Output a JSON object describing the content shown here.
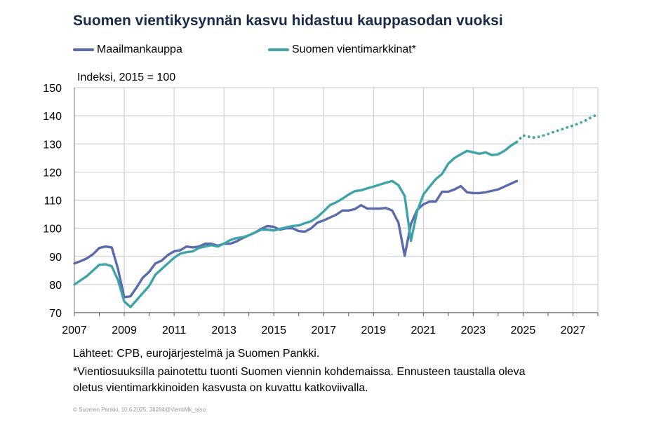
{
  "chart_data": {
    "type": "line",
    "title": "Suomen vientikysynnän kasvu hidastuu kauppasodan vuoksi",
    "ylabel": "Indeksi, 2015 = 100",
    "xlabel": "",
    "xlim": [
      2007,
      2028
    ],
    "ylim": [
      70,
      150
    ],
    "y_ticks": [
      70,
      80,
      90,
      100,
      110,
      120,
      130,
      140,
      150
    ],
    "x_ticks": [
      2007,
      2009,
      2011,
      2013,
      2015,
      2017,
      2019,
      2021,
      2023,
      2025,
      2027
    ],
    "y_tick_labels": [
      "70",
      "80",
      "90",
      "100",
      "110",
      "120",
      "130",
      "140",
      "150"
    ],
    "x_tick_labels": [
      "2007",
      "2009",
      "2011",
      "2013",
      "2015",
      "2017",
      "2019",
      "2021",
      "2023",
      "2025",
      "2027"
    ],
    "grid": true,
    "legend_position": "top",
    "series": [
      {
        "name": "Maailmankauppa",
        "color": "#5b6aad",
        "style": "solid",
        "x": [
          2007.0,
          2007.25,
          2007.5,
          2007.75,
          2008.0,
          2008.25,
          2008.5,
          2008.75,
          2009.0,
          2009.25,
          2009.5,
          2009.75,
          2010.0,
          2010.25,
          2010.5,
          2010.75,
          2011.0,
          2011.25,
          2011.5,
          2011.75,
          2012.0,
          2012.25,
          2012.5,
          2012.75,
          2013.0,
          2013.25,
          2013.5,
          2013.75,
          2014.0,
          2014.25,
          2014.5,
          2014.75,
          2015.0,
          2015.25,
          2015.5,
          2015.75,
          2016.0,
          2016.25,
          2016.5,
          2016.75,
          2017.0,
          2017.25,
          2017.5,
          2017.75,
          2018.0,
          2018.25,
          2018.5,
          2018.75,
          2019.0,
          2019.25,
          2019.5,
          2019.75,
          2020.0,
          2020.25,
          2020.5,
          2020.75,
          2021.0,
          2021.25,
          2021.5,
          2021.75,
          2022.0,
          2022.25,
          2022.5,
          2022.75,
          2023.0,
          2023.25,
          2023.5,
          2023.75,
          2024.0,
          2024.25,
          2024.5,
          2024.75,
          2025.0
        ],
        "values": [
          87.5,
          88.3,
          89.3,
          90.8,
          93.0,
          93.5,
          93.2,
          85.5,
          75.5,
          75.8,
          79.0,
          82.5,
          84.5,
          87.5,
          88.5,
          90.5,
          91.8,
          92.2,
          93.5,
          93.2,
          93.5,
          94.5,
          94.5,
          93.8,
          94.5,
          94.5,
          95.3,
          96.5,
          97.5,
          98.5,
          99.8,
          100.8,
          100.5,
          99.5,
          100.0,
          100.0,
          99.0,
          98.8,
          100.0,
          102.0,
          102.8,
          103.8,
          104.8,
          106.3,
          106.3,
          106.8,
          108.2,
          107.0,
          107.0,
          107.0,
          107.2,
          106.3,
          102.0,
          90.2,
          101.5,
          106.5,
          108.5,
          109.5,
          109.5,
          113.0,
          113.0,
          113.8,
          115.0,
          112.8,
          112.5,
          112.5,
          112.8,
          113.3,
          113.8,
          114.8,
          115.8,
          116.8,
          null
        ]
      },
      {
        "name": "Suomen vientimarkkinat*",
        "color": "#3fa4a9",
        "style": "solid",
        "x": [
          2007.0,
          2007.25,
          2007.5,
          2007.75,
          2008.0,
          2008.25,
          2008.5,
          2008.75,
          2009.0,
          2009.25,
          2009.5,
          2009.75,
          2010.0,
          2010.25,
          2010.5,
          2010.75,
          2011.0,
          2011.25,
          2011.5,
          2011.75,
          2012.0,
          2012.25,
          2012.5,
          2012.75,
          2013.0,
          2013.25,
          2013.5,
          2013.75,
          2014.0,
          2014.25,
          2014.5,
          2014.75,
          2015.0,
          2015.25,
          2015.5,
          2015.75,
          2016.0,
          2016.25,
          2016.5,
          2016.75,
          2017.0,
          2017.25,
          2017.5,
          2017.75,
          2018.0,
          2018.25,
          2018.5,
          2018.75,
          2019.0,
          2019.25,
          2019.5,
          2019.75,
          2020.0,
          2020.25,
          2020.5,
          2020.75,
          2021.0,
          2021.25,
          2021.5,
          2021.75,
          2022.0,
          2022.25,
          2022.5,
          2022.75,
          2023.0,
          2023.25,
          2023.5,
          2023.75,
          2024.0,
          2024.25,
          2024.5,
          2024.75
        ],
        "values": [
          80.0,
          81.5,
          83.0,
          85.0,
          87.0,
          87.2,
          86.5,
          81.5,
          74.0,
          72.0,
          74.5,
          77.0,
          79.5,
          83.5,
          85.5,
          87.5,
          89.5,
          91.0,
          91.5,
          91.8,
          93.0,
          93.5,
          94.0,
          93.5,
          94.5,
          95.8,
          96.5,
          96.8,
          97.5,
          98.5,
          99.5,
          99.5,
          99.2,
          99.8,
          100.3,
          100.8,
          101.0,
          101.8,
          102.5,
          104.0,
          106.0,
          108.2,
          109.2,
          110.5,
          112.0,
          113.2,
          113.5,
          114.2,
          114.8,
          115.5,
          116.2,
          116.8,
          115.3,
          111.5,
          95.5,
          106.0,
          112.0,
          114.8,
          117.5,
          119.3,
          123.0,
          125.0,
          126.3,
          127.5,
          127.0,
          126.5,
          127.0,
          126.0,
          126.3,
          127.5,
          129.3,
          130.7
        ]
      },
      {
        "name": "",
        "color": "#3fa4a9",
        "style": "dotted",
        "x": [
          2024.75,
          2025.0,
          2025.25,
          2025.5,
          2025.75,
          2026.0,
          2026.25,
          2026.5,
          2026.75,
          2027.0,
          2027.25,
          2027.5,
          2027.75,
          2028.0
        ],
        "values": [
          130.7,
          133.0,
          132.5,
          132.2,
          132.8,
          133.5,
          134.3,
          135.0,
          135.8,
          136.5,
          137.3,
          138.3,
          139.5,
          140.5
        ]
      }
    ]
  },
  "footer": {
    "line1": "Lähteet: CPB, eurojärjestelmä ja Suomen Pankki.",
    "line2": "*Vientiosuuksilla painotettu tuonti Suomen viennin kohdemaissa. Ennusteen taustalla oleva",
    "line3": "oletus vientimarkkinoiden kasvusta on kuvattu katkoviivalla.",
    "copyright": "© Suomen Pankki, 10.6.2025, 38284@VientiMk_taso"
  }
}
